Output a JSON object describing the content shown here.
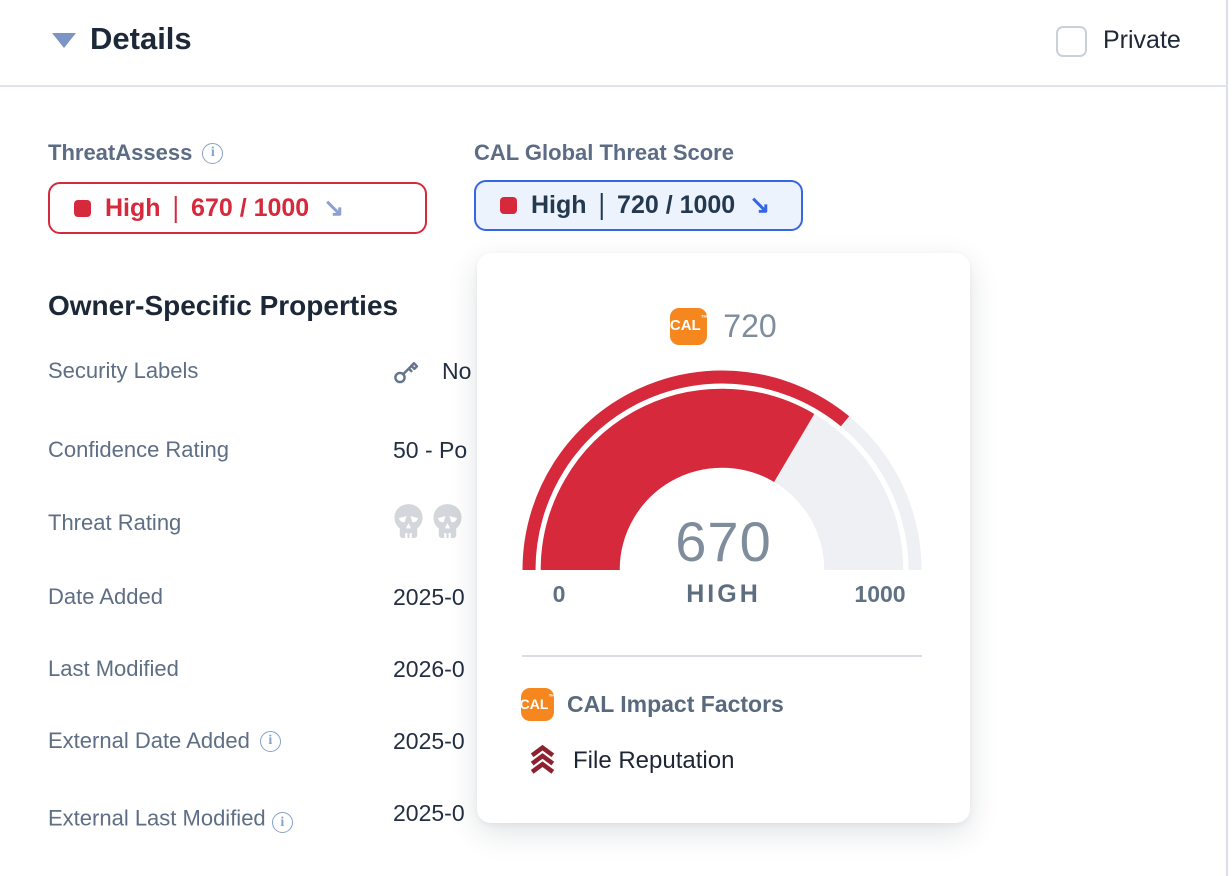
{
  "header": {
    "title": "Details",
    "private_label": "Private"
  },
  "scores": {
    "separator": "|",
    "threatassess": {
      "label": "ThreatAssess",
      "status": "High",
      "score": "670 / 1000"
    },
    "cal": {
      "label": "CAL Global Threat Score",
      "status": "High",
      "score": "720 / 1000"
    }
  },
  "properties": {
    "heading": "Owner-Specific Properties",
    "rows": [
      {
        "label": "Security Labels",
        "value": "No"
      },
      {
        "label": "Confidence Rating",
        "value": "50 - Po"
      },
      {
        "label": "Threat Rating",
        "value": ""
      },
      {
        "label": "Date Added",
        "value": "2025-0"
      },
      {
        "label": "Last Modified",
        "value": "2026-0"
      },
      {
        "label": "External Date Added",
        "value": "2025-0"
      },
      {
        "label": "External Last Modified",
        "value": "2025-0"
      }
    ]
  },
  "popup": {
    "cal_badge": "CAL",
    "tm": "™",
    "top_score": "720",
    "impact_heading": "CAL Impact Factors",
    "impact_factors": [
      "File Reputation"
    ]
  },
  "chart_data": {
    "type": "gauge",
    "title": "CAL Global Threat Score popup gauge",
    "value": 670,
    "value_label": "670",
    "band_label": "HIGH",
    "outer_value": 720,
    "min": 0,
    "max": 1000,
    "min_label": "0",
    "max_label": "1000",
    "value_color": "#d6293c",
    "track_color": "#eef0f3",
    "notes": "thick inner band = ThreatAssess 670/1000, thin outer arc = CAL score 720/1000"
  },
  "colors": {
    "accent_red": "#d6293c",
    "accent_blue": "#3566e6",
    "cal_orange": "#f6871f",
    "track_gray": "#eef0f3"
  }
}
